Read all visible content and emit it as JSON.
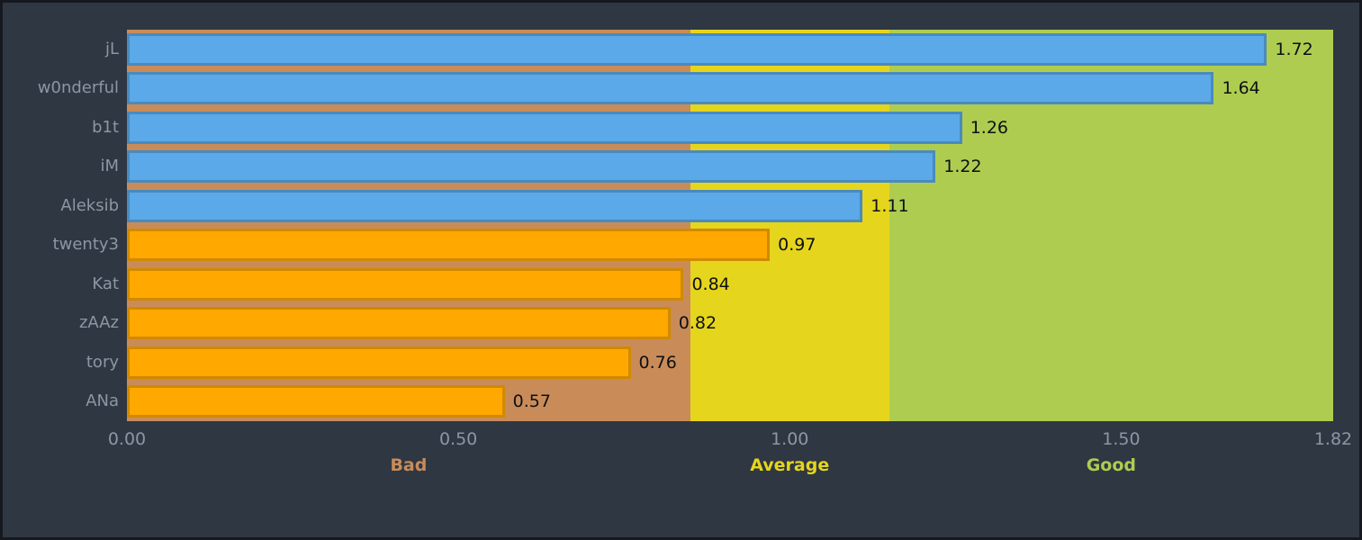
{
  "frame": {
    "background": "#2E3742",
    "border_color": "#15181E"
  },
  "chart_data": {
    "type": "bar",
    "orientation": "horizontal",
    "title": "",
    "xlabel": "",
    "ylabel": "",
    "grid": false,
    "legend": false,
    "xlim": [
      0,
      1.82
    ],
    "categories": [
      "jL",
      "w0nderful",
      "b1t",
      "iM",
      "Aleksib",
      "twenty3",
      "Kat",
      "zAAz",
      "tory",
      "ANa"
    ],
    "values": [
      1.72,
      1.64,
      1.26,
      1.22,
      1.11,
      0.97,
      0.84,
      0.82,
      0.76,
      0.57
    ],
    "value_labels": [
      "1.72",
      "1.64",
      "1.26",
      "1.22",
      "1.11",
      "0.97",
      "0.84",
      "0.82",
      "0.76",
      "0.57"
    ],
    "bar_color_keys": [
      "blue",
      "blue",
      "blue",
      "blue",
      "blue",
      "orange",
      "orange",
      "orange",
      "orange",
      "orange"
    ],
    "palette": {
      "blue": "#5BA9E8",
      "orange": "#FFA800"
    },
    "x_ticks": [
      {
        "value": 0.0,
        "label": "0.00"
      },
      {
        "value": 0.5,
        "label": "0.50"
      },
      {
        "value": 1.0,
        "label": "1.00"
      },
      {
        "value": 1.5,
        "label": "1.50"
      },
      {
        "value": 1.82,
        "label": "1.82"
      }
    ],
    "zones": [
      {
        "label": "Bad",
        "from": 0.0,
        "to": 0.85,
        "color": "#C98C59"
      },
      {
        "label": "Average",
        "from": 0.85,
        "to": 1.15,
        "color": "#E6D51D"
      },
      {
        "label": "Good",
        "from": 1.15,
        "to": 1.82,
        "color": "#AECD50"
      }
    ],
    "category_label_color": "#8D96A2",
    "tick_label_color": "#8D96A2",
    "value_label_color": "#0D1014"
  }
}
